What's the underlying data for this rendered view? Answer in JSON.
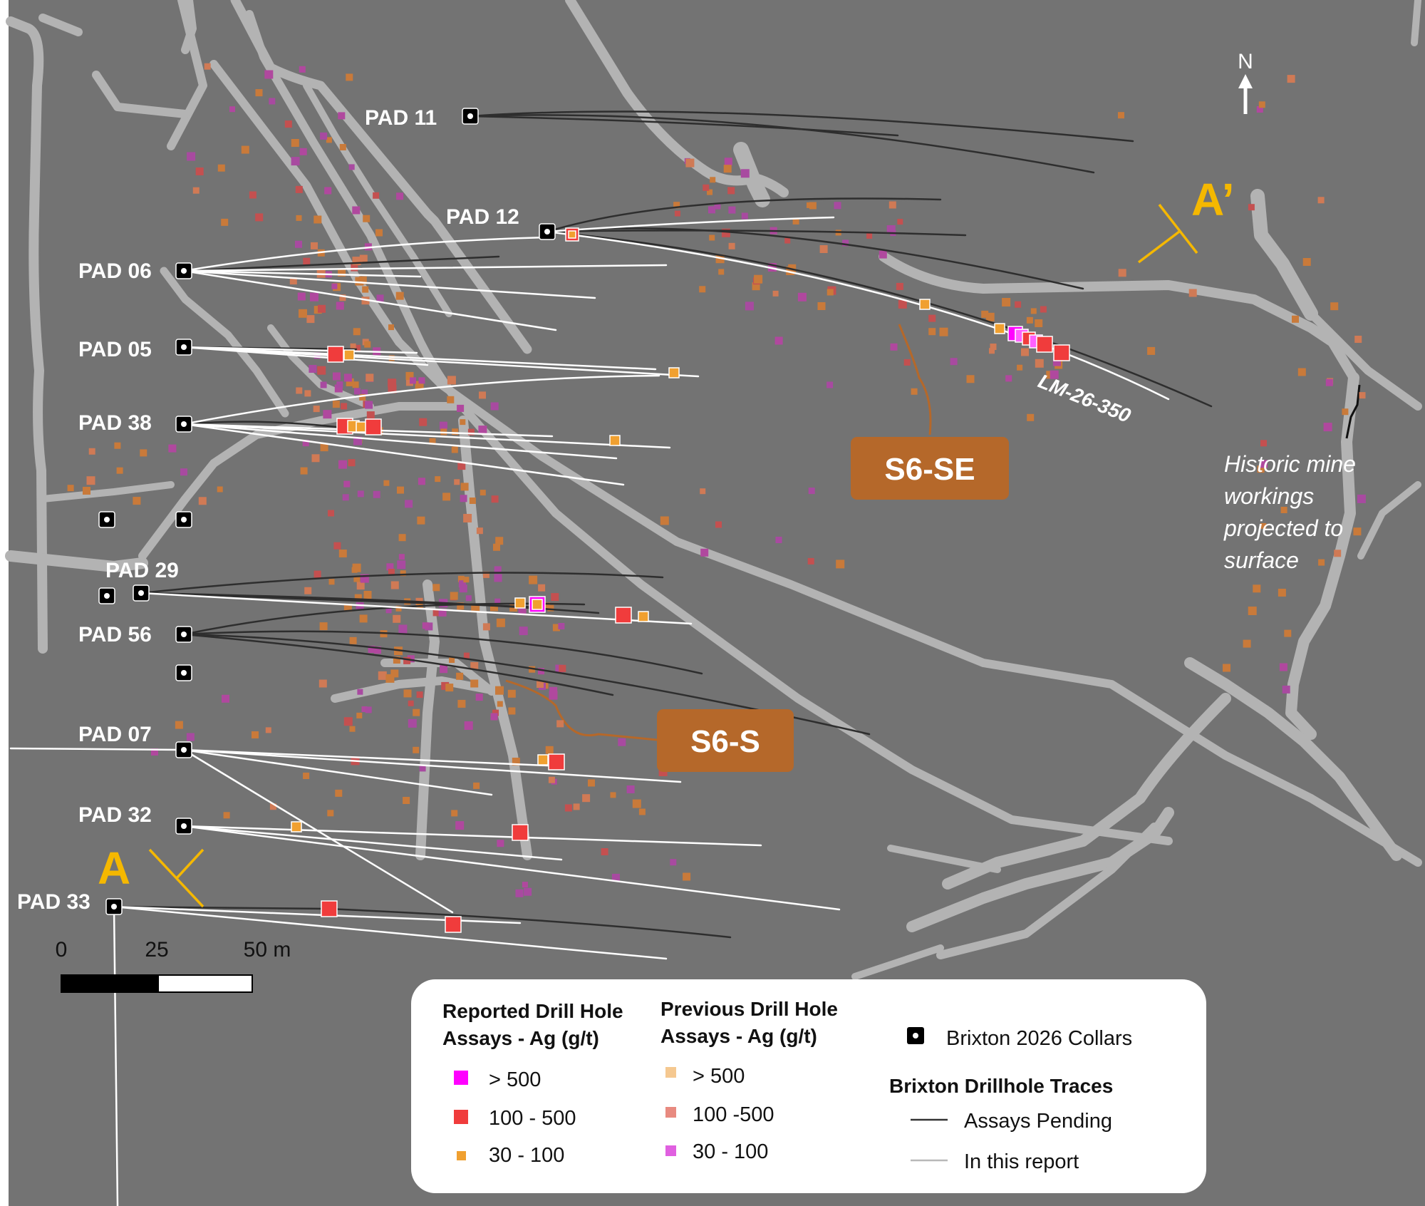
{
  "north_arrow": {
    "label": "N",
    "icon": "north-arrow-icon"
  },
  "section_line": {
    "start_label": "A",
    "end_label": "A’",
    "color": "#f5b800"
  },
  "pads": [
    {
      "id": "pad-11",
      "label": "PAD 11"
    },
    {
      "id": "pad-12",
      "label": "PAD 12"
    },
    {
      "id": "pad-06",
      "label": "PAD 06"
    },
    {
      "id": "pad-05",
      "label": "PAD 05"
    },
    {
      "id": "pad-38",
      "label": "PAD 38"
    },
    {
      "id": "pad-29",
      "label": "PAD 29"
    },
    {
      "id": "pad-56",
      "label": "PAD 56"
    },
    {
      "id": "pad-07",
      "label": "PAD 07"
    },
    {
      "id": "pad-32",
      "label": "PAD 32"
    },
    {
      "id": "pad-33",
      "label": "PAD 33"
    }
  ],
  "hole_label": "LM-26-350",
  "targets": [
    {
      "id": "s6-se",
      "label": "S6-SE"
    },
    {
      "id": "s6-s",
      "label": "S6-S"
    }
  ],
  "annotation": {
    "lines": [
      "Historic mine",
      "workings",
      "projected to",
      "surface"
    ]
  },
  "scale_bar": {
    "ticks": [
      "0",
      "25",
      "50 m"
    ]
  },
  "legend": {
    "reported_title": [
      "Reported Drill Hole",
      "Assays - Ag (g/t)"
    ],
    "reported_items": [
      {
        "label": "> 500",
        "color": "#ff00ff"
      },
      {
        "label": "100 - 500",
        "color": "#f03c3c"
      },
      {
        "label": "30 - 100",
        "color": "#f0a030"
      }
    ],
    "previous_title": [
      "Previous Drill Hole",
      "Assays - Ag (g/t)"
    ],
    "previous_items": [
      {
        "label": "> 500",
        "color": "#f5c890"
      },
      {
        "label": "100 -500",
        "color": "#e88a80"
      },
      {
        "label": "30 - 100",
        "color": "#e060e0"
      }
    ],
    "collars_label": "Brixton 2026 Collars",
    "traces_title": "Brixton Drillhole Traces",
    "trace_items": [
      {
        "label": "Assays Pending",
        "color": "#333333"
      },
      {
        "label": "In this report",
        "color": "#b8b8b8"
      }
    ]
  },
  "colors": {
    "background": "#737373",
    "workings": "#b3b3b3",
    "trace_pending": "#2e2e2e",
    "trace_reported": "#ffffff",
    "target": "#b5682a"
  }
}
